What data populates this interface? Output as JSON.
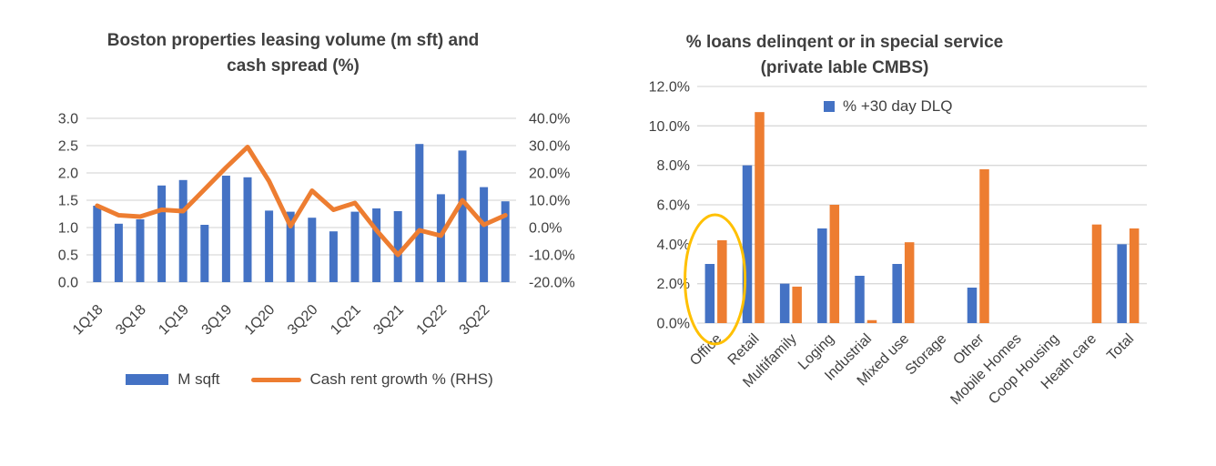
{
  "colors": {
    "bar_blue": "#4472C4",
    "line_orange": "#ED7D31",
    "highlight_yellow": "#FFC000",
    "gridline": "#D9D9D9",
    "text": "#404040"
  },
  "chart_data": [
    {
      "type": "combo-bar-line",
      "title": "Boston properties leasing volume (m sft) and cash spread (%)",
      "title_lines": [
        "Boston properties leasing volume (m sft) and",
        "cash spread (%)"
      ],
      "categories": [
        "1Q18",
        "2Q18",
        "3Q18",
        "4Q18",
        "1Q19",
        "2Q19",
        "3Q19",
        "4Q19",
        "1Q20",
        "2Q20",
        "3Q20",
        "4Q20",
        "1Q21",
        "2Q21",
        "3Q21",
        "4Q21",
        "1Q22",
        "2Q22",
        "3Q22",
        "4Q22"
      ],
      "x_tick_labels": [
        "1Q18",
        "3Q18",
        "1Q19",
        "3Q19",
        "1Q20",
        "3Q20",
        "1Q21",
        "3Q21",
        "1Q22",
        "3Q22"
      ],
      "series": [
        {
          "name": "M sqft",
          "type": "bar",
          "axis": "left",
          "color": "#4472C4",
          "values": [
            1.4,
            1.07,
            1.15,
            1.77,
            1.87,
            1.05,
            1.95,
            1.92,
            1.31,
            1.29,
            1.18,
            0.93,
            1.29,
            1.35,
            1.3,
            2.53,
            1.61,
            2.41,
            1.74,
            1.48
          ]
        },
        {
          "name": "Cash rent growth % (RHS)",
          "type": "line",
          "axis": "right",
          "color": "#ED7D31",
          "values": [
            8,
            4.5,
            4,
            6.5,
            6,
            14,
            22,
            29.5,
            17,
            0.5,
            13.5,
            6.5,
            9,
            -1,
            -10,
            -1,
            -3,
            10,
            1,
            4.5
          ]
        }
      ],
      "left_axis": {
        "min": 0,
        "max": 3,
        "tick_labels": [
          "3.0",
          "2.5",
          "2.0",
          "1.5",
          "1.0",
          "0.5",
          "0.0"
        ]
      },
      "right_axis": {
        "min": -20,
        "max": 40,
        "tick_labels": [
          "40.0%",
          "30.0%",
          "20.0%",
          "10.0%",
          "0.0%",
          "-10.0%",
          "-20.0%"
        ]
      },
      "grid": true,
      "legend_position": "bottom"
    },
    {
      "type": "bar",
      "title": "% loans delinqent or in special service (private lable CMBS)",
      "title_lines": [
        "% loans delinqent or in special service",
        "(private lable CMBS)"
      ],
      "categories": [
        "Office",
        "Retail",
        "Multifamily",
        "Loging",
        "Industrial",
        "Mixed use",
        "Storage",
        "Other",
        "Mobile Homes",
        "Coop Housing",
        "Heath care",
        "Total"
      ],
      "series": [
        {
          "name": "% +30 day DLQ",
          "color": "#4472C4",
          "values": [
            3.0,
            8.0,
            2.0,
            4.8,
            2.4,
            3.0,
            0,
            1.8,
            0,
            0,
            0,
            4.0
          ]
        },
        {
          "name": "",
          "color": "#ED7D31",
          "values": [
            4.2,
            10.7,
            1.85,
            6.0,
            0.15,
            4.1,
            0,
            7.8,
            0,
            0,
            5.0,
            4.8
          ]
        }
      ],
      "y_axis": {
        "min": 0,
        "max": 12,
        "tick_labels": [
          "12.0%",
          "10.0%",
          "8.0%",
          "6.0%",
          "4.0%",
          "2.0%",
          "0.0%"
        ]
      },
      "grid": true,
      "legend_position": "top-inside",
      "annotation": {
        "shape": "ellipse",
        "target_category": "Office",
        "color": "#FFC000"
      }
    }
  ]
}
